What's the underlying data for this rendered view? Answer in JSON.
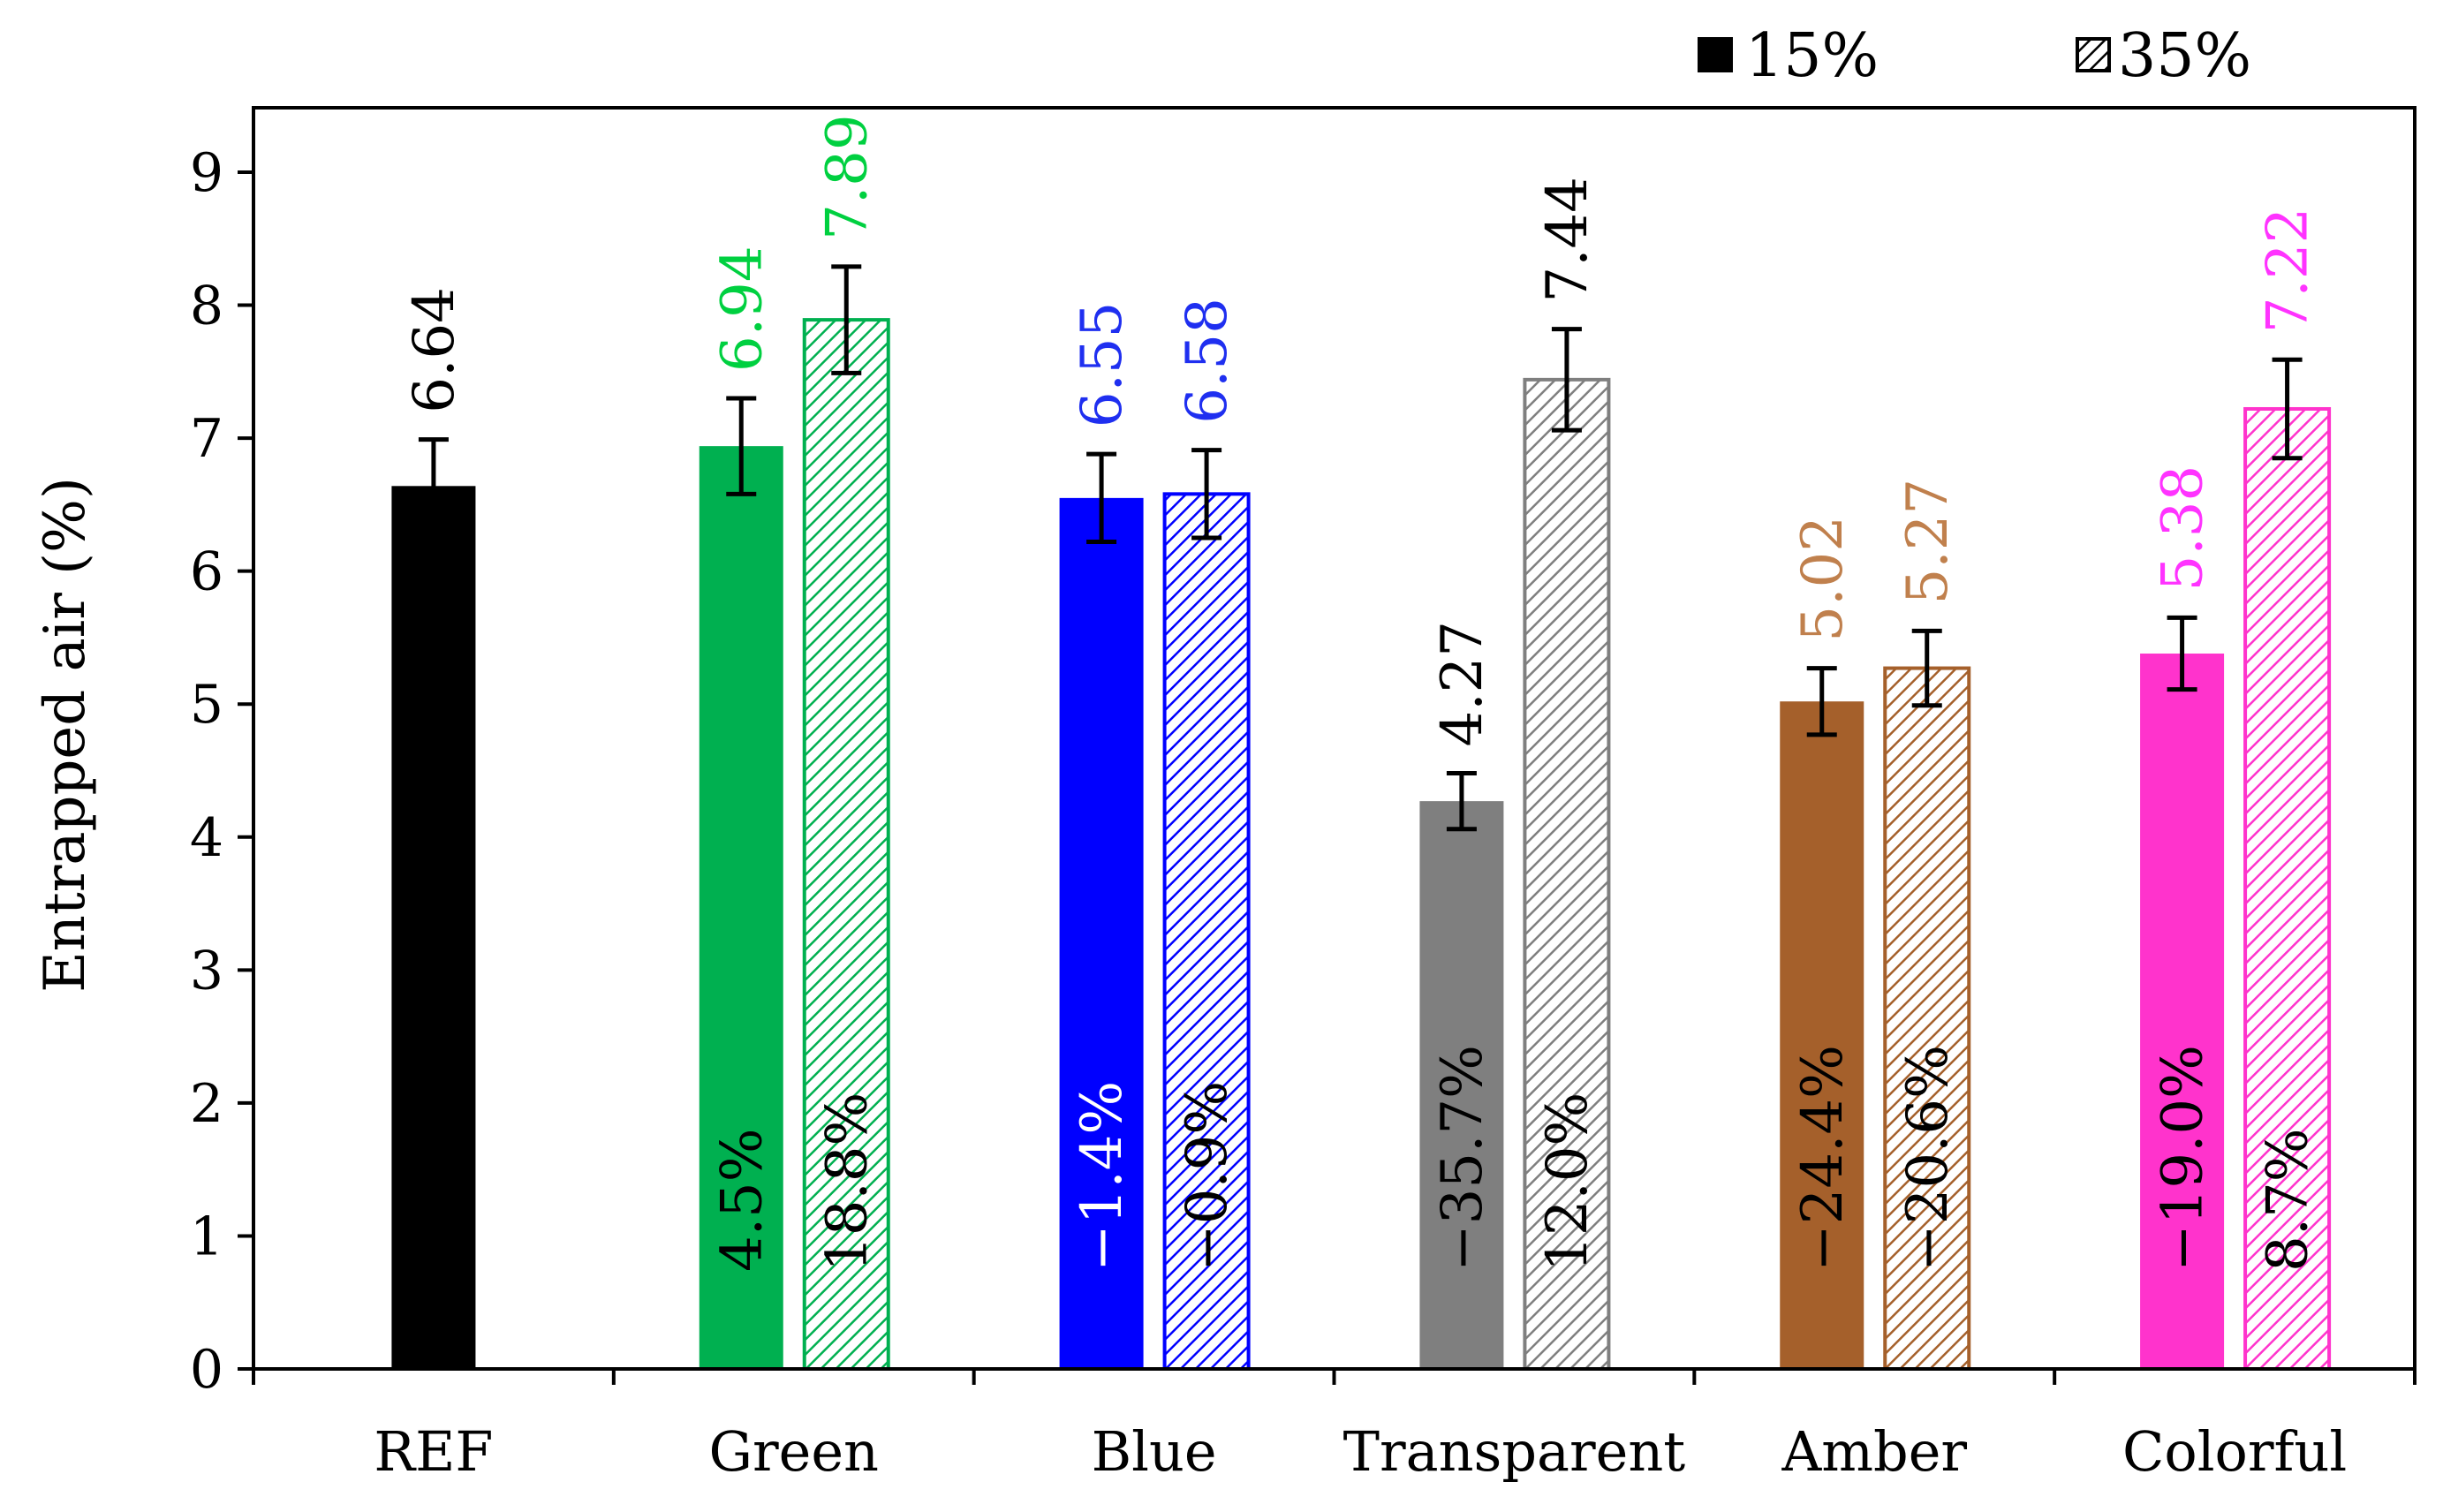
{
  "chart_data": {
    "type": "bar",
    "title": "",
    "xlabel": "",
    "ylabel": "Entrapped air (%)",
    "ylim": [
      0,
      9
    ],
    "yticks": [
      "0",
      "1",
      "2",
      "3",
      "4",
      "5",
      "6",
      "7",
      "8",
      "9"
    ],
    "grid": false,
    "legend_position": "top-right",
    "legend": [
      {
        "label": "15%",
        "style": "solid"
      },
      {
        "label": "35%",
        "style": "hatched"
      }
    ],
    "groups": [
      {
        "category": "REF",
        "color": "#000000",
        "label_color": "#000000",
        "bars": [
          {
            "series": "15%",
            "value": 6.64,
            "error": 0.35,
            "value_label": "6.64",
            "change_label": ""
          }
        ]
      },
      {
        "category": "Green",
        "color": "#00b050",
        "label_color": "#00d040",
        "bars": [
          {
            "series": "15%",
            "value": 6.94,
            "error": 0.36,
            "value_label": "6.94",
            "change_label": "4.5%"
          },
          {
            "series": "35%",
            "value": 7.89,
            "error": 0.4,
            "value_label": "7.89",
            "change_label": "18.8%"
          }
        ]
      },
      {
        "category": "Blue",
        "color": "#0000ff",
        "label_color": "#1f2ff0",
        "bars": [
          {
            "series": "15%",
            "value": 6.55,
            "error": 0.33,
            "value_label": "6.55",
            "change_label": "−1.4%"
          },
          {
            "series": "35%",
            "value": 6.58,
            "error": 0.33,
            "value_label": "6.58",
            "change_label": "−0.9%"
          }
        ]
      },
      {
        "category": "Transparent",
        "color": "#7f7f7f",
        "label_color": "#000000",
        "bars": [
          {
            "series": "15%",
            "value": 4.27,
            "error": 0.21,
            "value_label": "4.27",
            "change_label": "−35.7%"
          },
          {
            "series": "35%",
            "value": 7.44,
            "error": 0.38,
            "value_label": "7.44",
            "change_label": "12.0%"
          }
        ]
      },
      {
        "category": "Amber",
        "color": "#a5602b",
        "label_color": "#c0804d",
        "bars": [
          {
            "series": "15%",
            "value": 5.02,
            "error": 0.25,
            "value_label": "5.02",
            "change_label": "−24.4%"
          },
          {
            "series": "35%",
            "value": 5.27,
            "error": 0.28,
            "value_label": "5.27",
            "change_label": "−20.6%"
          }
        ]
      },
      {
        "category": "Colorful",
        "color": "#ff33cc",
        "label_color": "#ff33ff",
        "bars": [
          {
            "series": "15%",
            "value": 5.38,
            "error": 0.27,
            "value_label": "5.38",
            "change_label": "−19.0%"
          },
          {
            "series": "35%",
            "value": 7.22,
            "error": 0.37,
            "value_label": "7.22",
            "change_label": "8.7%"
          }
        ]
      }
    ]
  }
}
